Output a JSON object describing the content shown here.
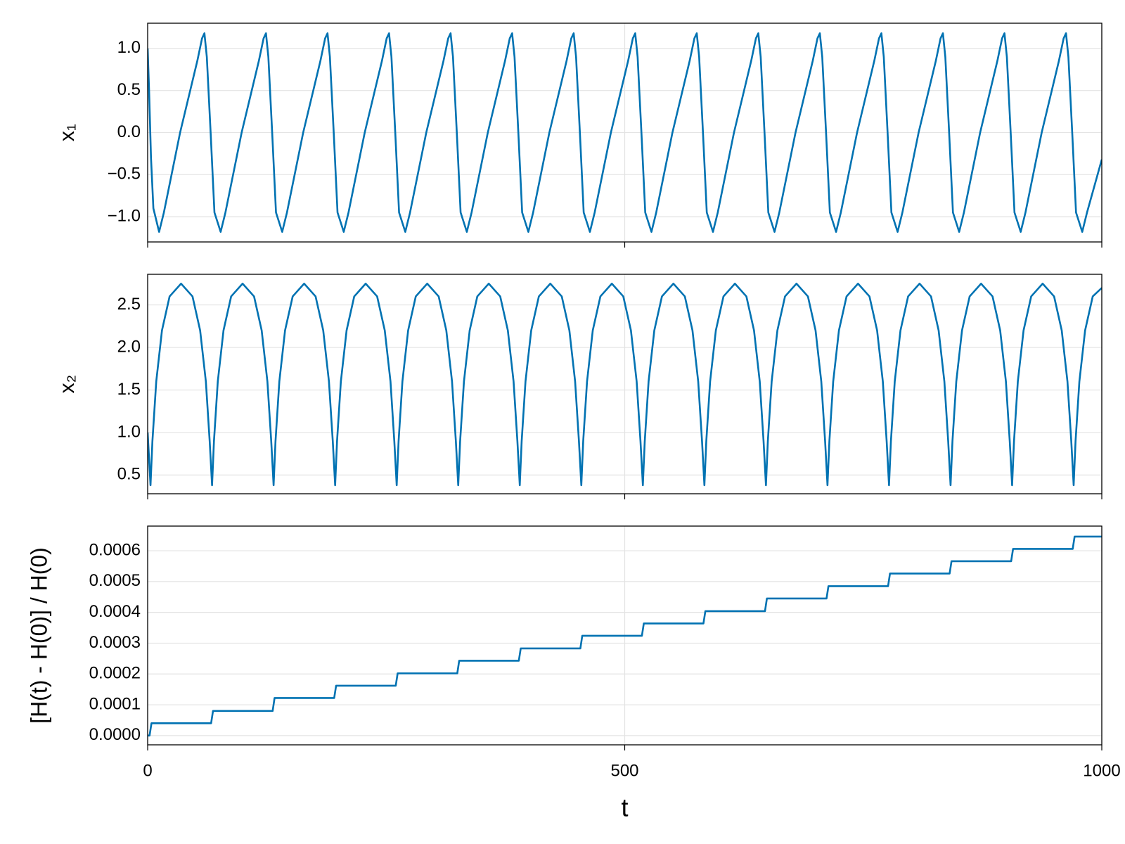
{
  "chart_data": [
    {
      "type": "line",
      "ylabel": "x₁",
      "color": "#0072b2",
      "grid": true,
      "xlim": [
        0,
        1000
      ],
      "ylim": [
        -1.3,
        1.3
      ],
      "yticks": [
        {
          "value": -1.0,
          "label": "−1.0"
        },
        {
          "value": -0.5,
          "label": "−0.5"
        },
        {
          "value": 0,
          "label": "0.0"
        },
        0.5,
        {
          "value": 1.0,
          "label": "1.0"
        }
      ],
      "x": [
        0,
        1.5,
        3.5,
        6,
        12,
        17,
        34,
        52,
        57,
        59.5,
        62,
        66,
        70,
        76.5,
        81.5,
        98.5,
        116.5,
        121.5,
        124,
        126.5,
        130.5,
        134.5,
        141,
        146,
        163,
        181,
        186,
        188.5,
        191,
        195,
        199,
        205.5,
        210.5,
        227.5,
        245.5,
        250.5,
        253,
        255.5,
        259.5,
        263.5,
        270,
        275,
        292,
        310,
        315,
        317.5,
        320,
        324,
        328,
        334.5,
        339.5,
        356.5,
        374.5,
        379.5,
        382,
        384.5,
        388.5,
        392.5,
        399,
        404,
        421,
        439,
        444,
        446.5,
        449,
        453,
        457,
        463.5,
        468.5,
        485.5,
        503.5,
        508.5,
        511,
        513.5,
        517.5,
        521.5,
        528,
        533,
        550,
        568,
        573,
        575.5,
        578,
        582,
        586,
        592.5,
        597.5,
        614.5,
        632.5,
        637.5,
        640,
        642.5,
        646.5,
        650.5,
        657,
        662,
        679,
        697,
        702,
        704.5,
        707,
        711,
        715,
        721.5,
        726.5,
        743.5,
        761.5,
        766.5,
        769,
        771.5,
        775.5,
        779.5,
        786,
        791,
        808,
        826,
        831,
        833.5,
        836,
        840,
        844,
        850.5,
        855.5,
        872.5,
        890.5,
        895.5,
        898,
        900.5,
        904.5,
        908.5,
        915,
        920,
        937,
        955,
        960,
        962.5,
        965,
        969,
        973,
        979.5,
        984.5,
        1000
      ],
      "values": [
        1.0,
        0.5,
        -0.3,
        -0.9,
        -1.18,
        -0.95,
        0,
        0.85,
        1.12,
        1.18,
        0.9,
        0,
        -0.95,
        -1.18,
        -0.95,
        0,
        0.85,
        1.12,
        1.18,
        0.9,
        0,
        -0.95,
        -1.18,
        -0.95,
        0,
        0.85,
        1.12,
        1.18,
        0.9,
        0,
        -0.95,
        -1.18,
        -0.95,
        0,
        0.85,
        1.12,
        1.18,
        0.9,
        0,
        -0.95,
        -1.18,
        -0.95,
        0,
        0.85,
        1.12,
        1.18,
        0.9,
        0,
        -0.95,
        -1.18,
        -0.95,
        0,
        0.85,
        1.12,
        1.18,
        0.9,
        0,
        -0.95,
        -1.18,
        -0.95,
        0,
        0.85,
        1.12,
        1.18,
        0.9,
        0,
        -0.95,
        -1.18,
        -0.95,
        0,
        0.85,
        1.12,
        1.18,
        0.9,
        0,
        -0.95,
        -1.18,
        -0.95,
        0,
        0.85,
        1.12,
        1.18,
        0.9,
        0,
        -0.95,
        -1.18,
        -0.95,
        0,
        0.85,
        1.12,
        1.18,
        0.9,
        0,
        -0.95,
        -1.18,
        -0.95,
        0,
        0.85,
        1.12,
        1.18,
        0.9,
        0,
        -0.95,
        -1.18,
        -0.95,
        0,
        0.85,
        1.12,
        1.18,
        0.9,
        0,
        -0.95,
        -1.18,
        -0.95,
        0,
        0.85,
        1.12,
        1.18,
        0.9,
        0,
        -0.95,
        -1.18,
        -0.95,
        0,
        0.85,
        1.12,
        1.18,
        0.9,
        0,
        -0.95,
        -1.18,
        -0.95,
        0,
        0.85,
        1.12,
        1.18,
        0.9,
        0,
        -0.95,
        -1.18,
        -0.95,
        -0.32
      ]
    },
    {
      "type": "line",
      "ylabel": "x₂",
      "color": "#0072b2",
      "grid": true,
      "xlim": [
        0,
        1000
      ],
      "ylim": [
        0.28,
        2.86
      ],
      "yticks": [
        0.5,
        {
          "value": 1.0,
          "label": "1.0"
        },
        1.5,
        {
          "value": 2.0,
          "label": "2.0"
        },
        2.5
      ],
      "x": [
        0,
        3,
        5,
        9,
        15,
        23,
        35,
        47,
        55,
        61,
        65,
        67.5,
        69.5,
        73.5,
        79.5,
        87.5,
        99.5,
        111.5,
        119.5,
        125.5,
        129.5,
        132,
        134,
        138,
        144,
        152,
        164,
        176,
        184,
        190,
        194,
        196.5,
        198.5,
        202.5,
        208.5,
        216.5,
        228.5,
        240.5,
        248.5,
        254.5,
        258.5,
        261,
        263,
        267,
        273,
        281,
        293,
        305,
        313,
        319,
        323,
        325.5,
        327.5,
        331.5,
        337.5,
        345.5,
        357.5,
        369.5,
        377.5,
        383.5,
        387.5,
        390,
        392,
        396,
        402,
        410,
        422,
        434,
        442,
        448,
        452,
        454.5,
        456.5,
        460.5,
        466.5,
        474.5,
        486.5,
        498.5,
        506.5,
        512.5,
        516.5,
        519,
        521,
        525,
        531,
        539,
        551,
        563,
        571,
        577,
        581,
        583.5,
        585.5,
        589.5,
        595.5,
        603.5,
        615.5,
        627.5,
        635.5,
        641.5,
        645.5,
        648,
        650,
        654,
        660,
        668,
        680,
        692,
        700,
        706,
        710,
        712.5,
        714.5,
        718.5,
        724.5,
        732.5,
        744.5,
        756.5,
        764.5,
        770.5,
        774.5,
        777,
        779,
        783,
        789,
        797,
        809,
        821,
        829,
        835,
        839,
        841.5,
        843.5,
        847.5,
        853.5,
        861.5,
        873.5,
        885.5,
        893.5,
        899.5,
        903.5,
        906,
        908,
        912,
        918,
        926,
        938,
        950,
        958,
        964,
        968,
        970.5,
        972.5,
        976.5,
        982.5,
        990.5,
        1000
      ],
      "values": [
        1.0,
        0.38,
        0.9,
        1.6,
        2.2,
        2.6,
        2.75,
        2.6,
        2.2,
        1.6,
        0.9,
        0.38,
        0.9,
        1.6,
        2.2,
        2.6,
        2.75,
        2.6,
        2.2,
        1.6,
        0.9,
        0.38,
        0.9,
        1.6,
        2.2,
        2.6,
        2.75,
        2.6,
        2.2,
        1.6,
        0.9,
        0.38,
        0.9,
        1.6,
        2.2,
        2.6,
        2.75,
        2.6,
        2.2,
        1.6,
        0.9,
        0.38,
        0.9,
        1.6,
        2.2,
        2.6,
        2.75,
        2.6,
        2.2,
        1.6,
        0.9,
        0.38,
        0.9,
        1.6,
        2.2,
        2.6,
        2.75,
        2.6,
        2.2,
        1.6,
        0.9,
        0.38,
        0.9,
        1.6,
        2.2,
        2.6,
        2.75,
        2.6,
        2.2,
        1.6,
        0.9,
        0.38,
        0.9,
        1.6,
        2.2,
        2.6,
        2.75,
        2.6,
        2.2,
        1.6,
        0.9,
        0.38,
        0.9,
        1.6,
        2.2,
        2.6,
        2.75,
        2.6,
        2.2,
        1.6,
        0.9,
        0.38,
        0.9,
        1.6,
        2.2,
        2.6,
        2.75,
        2.6,
        2.2,
        1.6,
        0.9,
        0.38,
        0.9,
        1.6,
        2.2,
        2.6,
        2.75,
        2.6,
        2.2,
        1.6,
        0.9,
        0.38,
        0.9,
        1.6,
        2.2,
        2.6,
        2.75,
        2.6,
        2.2,
        1.6,
        0.9,
        0.38,
        0.9,
        1.6,
        2.2,
        2.6,
        2.75,
        2.6,
        2.2,
        1.6,
        0.9,
        0.38,
        0.9,
        1.6,
        2.2,
        2.6,
        2.75,
        2.6,
        2.2,
        1.6,
        0.9,
        0.38,
        0.9,
        1.6,
        2.2,
        2.6,
        2.75,
        2.6,
        2.2,
        1.6,
        0.9,
        0.38,
        0.9,
        1.6,
        2.2,
        2.6,
        2.7
      ]
    },
    {
      "type": "line",
      "ylabel": "[H(t) - H(0)] / H(0)",
      "xlabel": "t",
      "color": "#0072b2",
      "grid": true,
      "xlim": [
        0,
        1000
      ],
      "ylim": [
        -3e-05,
        0.00068
      ],
      "xticks": [
        0,
        500,
        1000
      ],
      "yticks": [
        {
          "value": 0,
          "label": "0.0000"
        },
        {
          "value": 0.0001,
          "label": "0.0001"
        },
        {
          "value": 0.0002,
          "label": "0.0002"
        },
        {
          "value": 0.0003,
          "label": "0.0003"
        },
        {
          "value": 0.0004,
          "label": "0.0004"
        },
        {
          "value": 0.0005,
          "label": "0.0005"
        },
        {
          "value": 0.0006,
          "label": "0.0006"
        }
      ],
      "x": [
        0,
        2,
        4,
        66.5,
        68.5,
        131,
        133,
        195.5,
        197.5,
        260,
        262,
        324.5,
        326.5,
        389,
        391,
        453.5,
        455.5,
        518,
        520,
        582.5,
        584.5,
        647,
        649,
        711.5,
        713.5,
        776,
        778,
        840.5,
        842.5,
        905,
        907,
        969.5,
        971.5,
        1000
      ],
      "values": [
        0,
        0,
        4e-05,
        4e-05,
        8e-05,
        8e-05,
        0.000122,
        0.000122,
        0.000162,
        0.000162,
        0.000202,
        0.000202,
        0.000243,
        0.000243,
        0.000283,
        0.000283,
        0.000324,
        0.000324,
        0.000364,
        0.000364,
        0.000404,
        0.000404,
        0.000445,
        0.000445,
        0.000485,
        0.000485,
        0.000526,
        0.000526,
        0.000566,
        0.000566,
        0.000606,
        0.000606,
        0.000646,
        0.000646
      ]
    }
  ]
}
